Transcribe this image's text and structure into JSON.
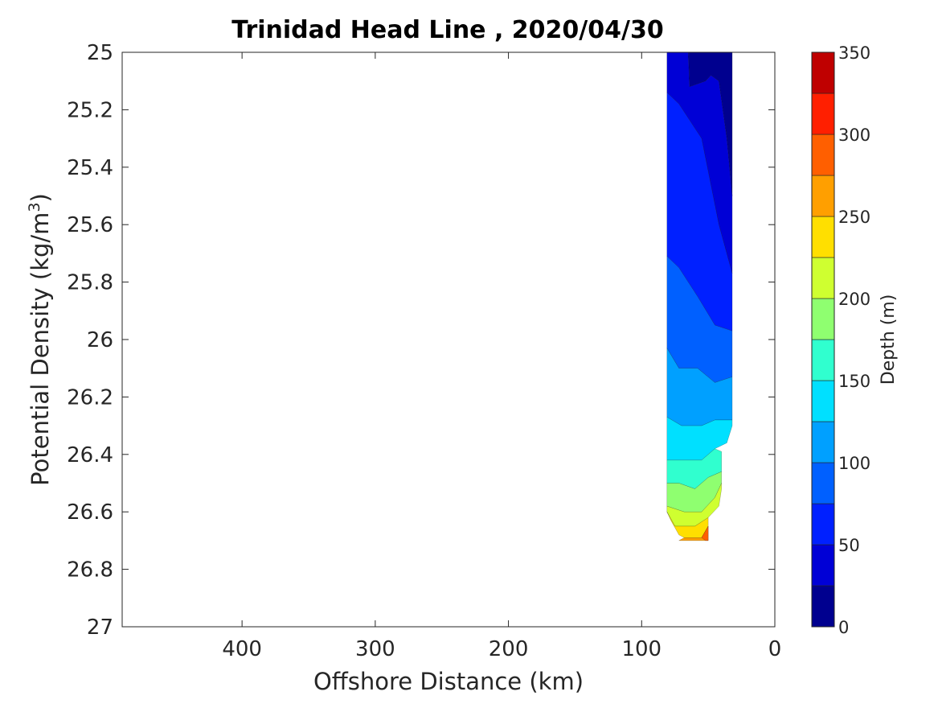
{
  "chart_data": {
    "type": "contour",
    "title": "Trinidad Head Line , 2020/04/30",
    "xlabel": "Offshore Distance (km)",
    "ylabel": "Potential Density (kg/m3)",
    "ylabel_main": "Potential Density (kg/m",
    "ylabel_sup": "3",
    "ylabel_end": ")",
    "xlim": [
      490,
      0
    ],
    "x_reversed": true,
    "xticks": [
      400,
      300,
      200,
      100,
      0
    ],
    "xtick_labels": [
      "400",
      "300",
      "200",
      "100",
      "0"
    ],
    "ylim": [
      25,
      27
    ],
    "y_reversed": true,
    "yticks": [
      25,
      25.2,
      25.4,
      25.6,
      25.8,
      26,
      26.2,
      26.4,
      26.6,
      26.8,
      27
    ],
    "ytick_labels": [
      "25",
      "25.2",
      "25.4",
      "25.6",
      "25.8",
      "26",
      "26.2",
      "26.4",
      "26.6",
      "26.8",
      "27"
    ],
    "grid": false,
    "colorbar": {
      "label": "Depth (m)",
      "range": [
        0,
        350
      ],
      "levels": [
        0,
        25,
        50,
        75,
        100,
        125,
        150,
        175,
        200,
        225,
        250,
        275,
        300,
        325,
        350
      ],
      "tick_values": [
        0,
        50,
        100,
        150,
        200,
        250,
        300,
        350
      ],
      "tick_labels": [
        "0",
        "50",
        "100",
        "150",
        "200",
        "250",
        "300",
        "350"
      ],
      "colors": [
        "#00008f",
        "#0000d6",
        "#0020ff",
        "#0060ff",
        "#00a0ff",
        "#00e0ff",
        "#30ffcf",
        "#8fff70",
        "#cfff30",
        "#ffdf00",
        "#ff9f00",
        "#ff5f00",
        "#ff1f00",
        "#bf0000"
      ],
      "placement": "right"
    },
    "contour_bands": [
      {
        "depth_range": [
          0,
          25
        ],
        "polygon": [
          [
            65,
            25
          ],
          [
            32,
            25
          ],
          [
            32,
            25.5
          ],
          [
            36,
            25.3
          ],
          [
            42,
            25.1
          ],
          [
            48,
            25.08
          ],
          [
            52,
            25.1
          ],
          [
            64,
            25.12
          ]
        ]
      },
      {
        "depth_range": [
          25,
          50
        ],
        "polygon": [
          [
            81,
            25
          ],
          [
            65,
            25
          ],
          [
            64,
            25.12
          ],
          [
            52,
            25.1
          ],
          [
            48,
            25.08
          ],
          [
            42,
            25.1
          ],
          [
            36,
            25.3
          ],
          [
            32,
            25.5
          ],
          [
            32,
            25.77
          ],
          [
            42,
            25.6
          ],
          [
            55,
            25.3
          ],
          [
            72,
            25.18
          ],
          [
            81,
            25.14
          ]
        ]
      },
      {
        "depth_range": [
          50,
          75
        ],
        "polygon": [
          [
            81,
            25.14
          ],
          [
            72,
            25.18
          ],
          [
            55,
            25.3
          ],
          [
            42,
            25.6
          ],
          [
            32,
            25.77
          ],
          [
            32,
            25.97
          ],
          [
            45,
            25.95
          ],
          [
            58,
            25.85
          ],
          [
            72,
            25.75
          ],
          [
            81,
            25.71
          ]
        ]
      },
      {
        "depth_range": [
          75,
          100
        ],
        "polygon": [
          [
            81,
            25.71
          ],
          [
            72,
            25.75
          ],
          [
            58,
            25.85
          ],
          [
            45,
            25.95
          ],
          [
            32,
            25.97
          ],
          [
            32,
            26.13
          ],
          [
            45,
            26.15
          ],
          [
            58,
            26.1
          ],
          [
            72,
            26.1
          ],
          [
            81,
            26.03
          ]
        ]
      },
      {
        "depth_range": [
          100,
          125
        ],
        "polygon": [
          [
            81,
            26.03
          ],
          [
            72,
            26.1
          ],
          [
            58,
            26.1
          ],
          [
            45,
            26.15
          ],
          [
            32,
            26.13
          ],
          [
            32,
            26.28
          ],
          [
            45,
            26.28
          ],
          [
            55,
            26.3
          ],
          [
            70,
            26.3
          ],
          [
            81,
            26.27
          ]
        ]
      },
      {
        "depth_range": [
          125,
          150
        ],
        "polygon": [
          [
            81,
            26.27
          ],
          [
            70,
            26.3
          ],
          [
            55,
            26.3
          ],
          [
            45,
            26.28
          ],
          [
            32,
            26.28
          ],
          [
            32,
            26.3
          ],
          [
            36,
            26.36
          ],
          [
            45,
            26.38
          ],
          [
            55,
            26.42
          ],
          [
            70,
            26.42
          ],
          [
            81,
            26.42
          ]
        ]
      },
      {
        "depth_range": [
          150,
          175
        ],
        "polygon": [
          [
            81,
            26.42
          ],
          [
            70,
            26.42
          ],
          [
            55,
            26.42
          ],
          [
            45,
            26.38
          ],
          [
            40,
            26.39
          ],
          [
            40,
            26.46
          ],
          [
            50,
            26.48
          ],
          [
            60,
            26.52
          ],
          [
            72,
            26.5
          ],
          [
            81,
            26.5
          ]
        ]
      },
      {
        "depth_range": [
          175,
          200
        ],
        "polygon": [
          [
            81,
            26.5
          ],
          [
            72,
            26.5
          ],
          [
            60,
            26.52
          ],
          [
            50,
            26.48
          ],
          [
            40,
            26.46
          ],
          [
            40,
            26.5
          ],
          [
            45,
            26.55
          ],
          [
            55,
            26.6
          ],
          [
            68,
            26.6
          ],
          [
            81,
            26.58
          ]
        ]
      },
      {
        "depth_range": [
          200,
          225
        ],
        "polygon": [
          [
            81,
            26.58
          ],
          [
            68,
            26.6
          ],
          [
            55,
            26.6
          ],
          [
            45,
            26.55
          ],
          [
            40,
            26.5
          ],
          [
            40,
            26.52
          ],
          [
            42,
            26.58
          ],
          [
            50,
            26.62
          ],
          [
            60,
            26.65
          ],
          [
            75,
            26.65
          ],
          [
            81,
            26.6
          ]
        ]
      },
      {
        "depth_range": [
          225,
          250
        ],
        "polygon": [
          [
            81,
            26.6
          ],
          [
            75,
            26.65
          ],
          [
            60,
            26.65
          ],
          [
            50,
            26.62
          ],
          [
            50,
            26.65
          ],
          [
            55,
            26.69
          ],
          [
            68,
            26.69
          ],
          [
            72,
            26.68
          ],
          [
            78,
            26.63
          ]
        ]
      },
      {
        "depth_range": [
          250,
          275
        ],
        "polygon": [
          [
            50,
            26.65
          ],
          [
            50,
            26.7
          ],
          [
            72,
            26.7
          ],
          [
            68,
            26.69
          ],
          [
            55,
            26.69
          ]
        ]
      },
      {
        "depth_range": [
          275,
          300
        ],
        "polygon": [
          [
            55,
            26.69
          ],
          [
            50,
            26.65
          ],
          [
            50,
            26.7
          ],
          [
            52,
            26.7
          ]
        ]
      }
    ]
  }
}
